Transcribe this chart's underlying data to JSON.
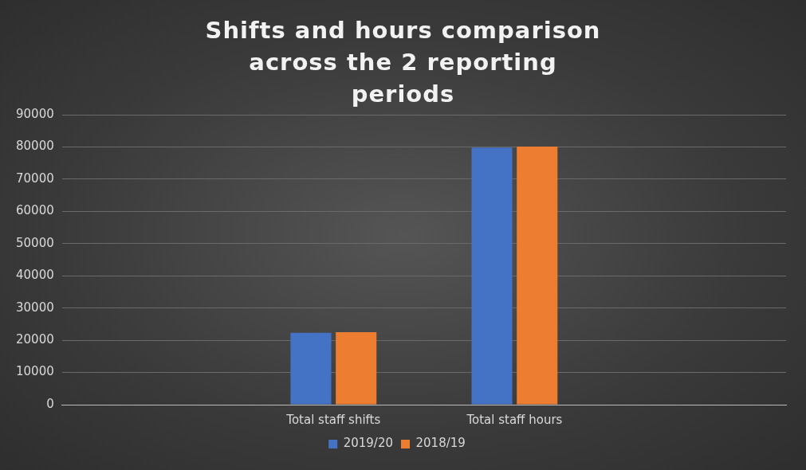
{
  "chart_data": {
    "type": "bar",
    "title": "Shifts and hours comparison across the 2 reporting periods",
    "categories": [
      null,
      "Total staff shifts",
      "Total staff hours",
      null
    ],
    "series": [
      {
        "name": "2019/20",
        "color": "#4472c4",
        "values": [
          null,
          22300,
          79800,
          null
        ]
      },
      {
        "name": "2018/19",
        "color": "#ed7d31",
        "values": [
          null,
          22500,
          80100,
          null
        ]
      }
    ],
    "ylim": [
      0,
      90000
    ],
    "yticks": [
      0,
      10000,
      20000,
      30000,
      40000,
      50000,
      60000,
      70000,
      80000,
      90000
    ],
    "grid": "y",
    "legend": "bottom"
  }
}
